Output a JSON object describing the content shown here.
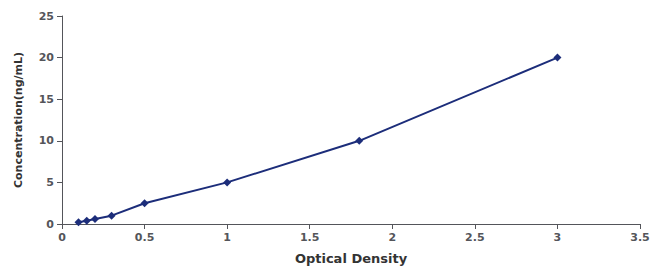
{
  "chart_data": {
    "type": "line",
    "x": [
      0.1,
      0.15,
      0.2,
      0.3,
      0.5,
      1.0,
      1.8,
      3.0
    ],
    "values": [
      0.2,
      0.4,
      0.6,
      1.0,
      2.5,
      5.0,
      10.0,
      20.0
    ],
    "xlabel": "Optical Density",
    "ylabel": "Concentration(ng/mL)",
    "xlim": [
      0,
      3.5
    ],
    "ylim": [
      0,
      25
    ],
    "xticks": [
      0,
      0.5,
      1,
      1.5,
      2,
      2.5,
      3,
      3.5
    ],
    "yticks": [
      0,
      5,
      10,
      15,
      20,
      25
    ],
    "color": "#1C2D7A",
    "marker": "diamond",
    "line_style": "solid",
    "grid": false
  }
}
